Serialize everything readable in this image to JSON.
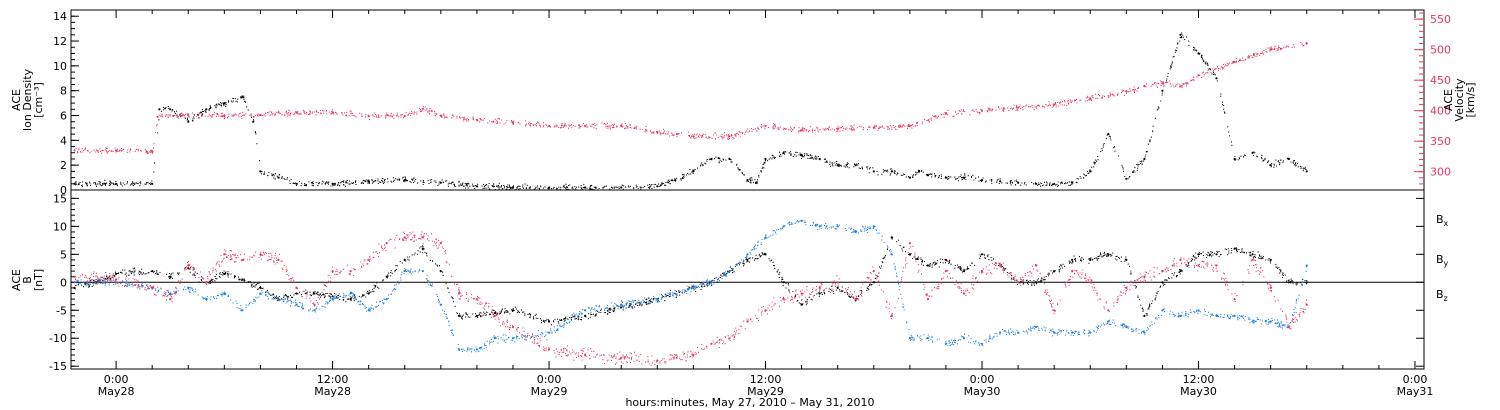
{
  "chart_data": [
    {
      "type": "scatter",
      "panel": "top",
      "ylabel_left": [
        "ACE",
        "Ion Density",
        "[cm⁻³]"
      ],
      "ylabel_right": [
        "ACE",
        "Velocity",
        "[km/s]"
      ],
      "ylim_left": [
        0,
        14.5
      ],
      "ylim_right": [
        270,
        565
      ],
      "yticks_left": [
        0,
        2,
        4,
        6,
        8,
        10,
        12,
        14
      ],
      "yticks_right": [
        300,
        350,
        400,
        450,
        500,
        550
      ],
      "colors": {
        "density": "#000000",
        "velocity": "#e8365e"
      },
      "series": [
        {
          "name": "Ion Density",
          "axis": "left",
          "color": "#000000",
          "x_hours": [
            -2.3,
            0,
            2,
            2.4,
            3,
            4,
            5,
            6,
            7,
            7.6,
            8,
            9,
            10,
            12,
            14,
            16,
            18,
            20,
            22,
            24,
            26,
            28,
            30,
            31,
            32,
            33,
            34,
            35,
            35.5,
            36,
            37,
            38,
            39,
            40,
            41,
            42,
            43,
            44,
            44.5,
            45,
            46,
            47,
            48,
            49,
            50,
            51,
            52,
            53,
            54,
            55,
            56,
            57,
            58,
            59,
            60,
            61,
            62,
            63,
            64,
            65,
            66
          ],
          "values": [
            0.5,
            0.5,
            0.5,
            6.5,
            6.5,
            5.5,
            6.5,
            7,
            7.5,
            5.5,
            1.5,
            1.0,
            0.5,
            0.5,
            0.7,
            0.8,
            0.6,
            0.3,
            0.2,
            0.2,
            0.2,
            0.2,
            0.3,
            0.8,
            1.5,
            2.5,
            2.5,
            0.8,
            0.6,
            2.5,
            3.0,
            2.8,
            2.5,
            2.0,
            2.0,
            1.5,
            1.5,
            1.0,
            1.5,
            1.2,
            1.0,
            1.0,
            0.8,
            0.7,
            0.6,
            0.5,
            0.5,
            0.6,
            1.5,
            4.5,
            0.9,
            2.5,
            8.0,
            12.5,
            11.0,
            9.0,
            2.5,
            3.0,
            2.0,
            2.5,
            1.5
          ]
        },
        {
          "name": "Velocity",
          "axis": "right",
          "color": "#e8365e",
          "x_hours": [
            -2.3,
            0,
            2,
            2.3,
            4,
            6,
            8,
            10,
            12,
            14,
            16,
            17,
            18,
            20,
            22,
            24,
            26,
            28,
            30,
            32,
            34,
            36,
            38,
            40,
            42,
            44,
            46,
            48,
            50,
            52,
            54,
            56,
            57,
            58,
            59,
            60,
            62,
            64,
            66
          ],
          "values": [
            335,
            335,
            333,
            390,
            393,
            392,
            393,
            397,
            397,
            391,
            391,
            403,
            392,
            385,
            380,
            375,
            375,
            375,
            365,
            358,
            358,
            375,
            368,
            370,
            372,
            375,
            395,
            400,
            405,
            410,
            420,
            432,
            440,
            445,
            440,
            458,
            480,
            500,
            510
          ]
        }
      ]
    },
    {
      "type": "scatter",
      "panel": "bottom",
      "ylabel_left": [
        "ACE",
        "B",
        "[nT]"
      ],
      "ylim": [
        -15.5,
        16.5
      ],
      "yticks": [
        -15,
        -10,
        -5,
        0,
        5,
        10,
        15
      ],
      "zero_line": true,
      "legend_position": "right",
      "legend": [
        "Bx",
        "By",
        "Bz"
      ],
      "colors": {
        "Bx": "#000000",
        "By": "#1f7fdc",
        "Bz": "#e8365e"
      },
      "series": [
        {
          "name": "Bx",
          "color": "#000000",
          "x_hours": [
            -2.3,
            0,
            2,
            3,
            4,
            5,
            6,
            7,
            8,
            9,
            10,
            11,
            12,
            13,
            14,
            15,
            16,
            17,
            18,
            19,
            20,
            21,
            22,
            24,
            26,
            28,
            30,
            32,
            33,
            34,
            35,
            36,
            37,
            38,
            39,
            40,
            41,
            42,
            43,
            44,
            45,
            46,
            47,
            48,
            49,
            50,
            51,
            52,
            53,
            54,
            55,
            56,
            57,
            58,
            59,
            60,
            61,
            62,
            63,
            64,
            65,
            66
          ],
          "values": [
            -1,
            1.5,
            2,
            1,
            2.5,
            0,
            1.5,
            0.5,
            -1,
            -3,
            -2,
            -2,
            -2.5,
            -3,
            -2,
            1,
            4,
            6,
            2,
            -6,
            -6,
            -5.5,
            -5,
            -7,
            -6,
            -4.5,
            -3,
            -1,
            0,
            2,
            4,
            5,
            0,
            -4,
            -2,
            -1,
            -3,
            0,
            8,
            5,
            3,
            4,
            2,
            5,
            3,
            0,
            0,
            2,
            4,
            4,
            5,
            4,
            -6,
            0,
            2,
            5,
            5,
            6,
            5,
            4,
            0,
            0
          ]
        },
        {
          "name": "By",
          "color": "#1f7fdc",
          "x_hours": [
            -2.3,
            0,
            2,
            3,
            4,
            5,
            6,
            7,
            8,
            9,
            10,
            11,
            12,
            13,
            14,
            15,
            16,
            17,
            18,
            19,
            20,
            21,
            22,
            24,
            26,
            28,
            30,
            32,
            33,
            34,
            35,
            36,
            37,
            38,
            39,
            40,
            41,
            42,
            43,
            44,
            45,
            46,
            47,
            48,
            49,
            50,
            51,
            52,
            53,
            54,
            55,
            56,
            57,
            58,
            59,
            60,
            61,
            62,
            63,
            64,
            65,
            66
          ],
          "values": [
            0,
            0,
            -1,
            -2,
            -1,
            -3,
            -2,
            -5,
            -2,
            -3,
            -4,
            -5,
            -3,
            -2,
            -5,
            -3,
            2,
            2,
            -4,
            -12,
            -12,
            -10,
            -10,
            -9,
            -5,
            -4,
            -3,
            -1,
            0,
            2,
            5,
            8,
            10,
            11,
            10,
            10,
            9,
            10,
            5,
            -10,
            -10,
            -11,
            -10,
            -11,
            -9,
            -9,
            -8,
            -9,
            -9,
            -9,
            -7,
            -8,
            -9,
            -5,
            -6,
            -5,
            -6,
            -6,
            -7,
            -7,
            -8,
            3
          ]
        },
        {
          "name": "Bz",
          "color": "#e8365e",
          "x_hours": [
            -2.3,
            0,
            2,
            3,
            4,
            5,
            6,
            7,
            8,
            9,
            10,
            11,
            12,
            13,
            14,
            15,
            16,
            17,
            18,
            19,
            20,
            21,
            22,
            24,
            26,
            28,
            30,
            32,
            33,
            34,
            35,
            36,
            37,
            38,
            39,
            40,
            41,
            42,
            43,
            44,
            45,
            46,
            47,
            48,
            49,
            50,
            51,
            52,
            53,
            54,
            55,
            56,
            57,
            58,
            59,
            60,
            61,
            62,
            63,
            64,
            65,
            66
          ],
          "values": [
            1,
            0.5,
            -1,
            -3,
            3,
            0,
            5,
            4,
            5,
            4,
            -1,
            -4,
            2,
            2,
            4,
            7,
            8,
            8,
            7,
            -2,
            -3,
            -6,
            -8,
            -12,
            -13,
            -13.5,
            -14,
            -13,
            -11,
            -10,
            -7,
            -5,
            -3,
            -2,
            -1,
            0,
            -3,
            2,
            -6,
            7,
            -3,
            2,
            -2,
            2,
            3,
            0,
            3,
            -5,
            2,
            0,
            -5,
            -1,
            1,
            2,
            4,
            3,
            3,
            -3,
            4,
            -1,
            -8,
            -4
          ]
        }
      ]
    }
  ],
  "x_axis": {
    "range_hours": [
      -2.5,
      72.5
    ],
    "ticks": [
      {
        "hour": 0,
        "time": "0:00",
        "day": "May28"
      },
      {
        "hour": 12,
        "time": "12:00",
        "day": "May28"
      },
      {
        "hour": 24,
        "time": "0:00",
        "day": "May29"
      },
      {
        "hour": 36,
        "time": "12:00",
        "day": "May29"
      },
      {
        "hour": 48,
        "time": "0:00",
        "day": "May30"
      },
      {
        "hour": 60,
        "time": "12:00",
        "day": "May30"
      },
      {
        "hour": 72,
        "time": "0:00",
        "day": "May31"
      }
    ],
    "xlabel": "hours:minutes, May 27, 2010 – May 31, 2010"
  },
  "legend_labels": {
    "Bx": {
      "main": "B",
      "sub": "x"
    },
    "By": {
      "main": "B",
      "sub": "y"
    },
    "Bz": {
      "main": "B",
      "sub": "z"
    }
  }
}
